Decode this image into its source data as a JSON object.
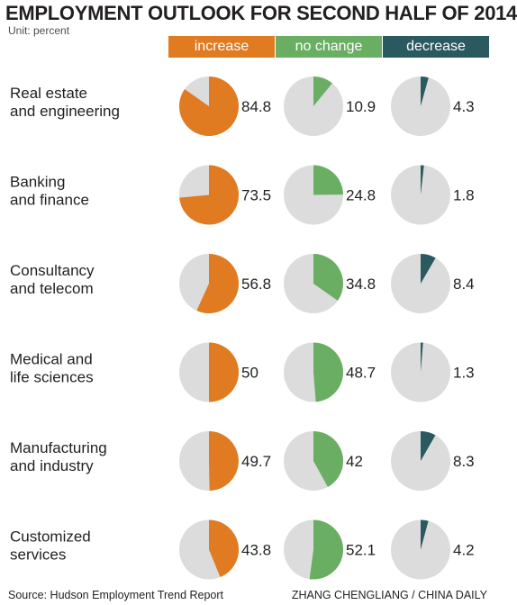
{
  "title": "EMPLOYMENT OUTLOOK FOR SECOND HALF OF 2014",
  "unit": "Unit: percent",
  "footer": {
    "source": "Source: Hudson Employment Trend Report",
    "credit": "ZHANG CHENGLIANG / CHINA DAILY"
  },
  "colors": {
    "increase": "#e07b21",
    "no_change": "#6aae63",
    "decrease": "#2b5960",
    "pie_background": "#dcdcdc"
  },
  "chart_data": {
    "type": "pie",
    "title": "EMPLOYMENT OUTLOOK FOR SECOND HALF OF 2014",
    "unit": "percent",
    "columns": [
      "increase",
      "no change",
      "decrease"
    ],
    "rows": [
      {
        "label": [
          "Real estate",
          "and engineering"
        ],
        "values": [
          84.8,
          10.9,
          4.3
        ],
        "labels": [
          "84.8",
          "10.9",
          "4.3"
        ]
      },
      {
        "label": [
          "Banking",
          "and finance"
        ],
        "values": [
          73.5,
          24.8,
          1.8
        ],
        "labels": [
          "73.5",
          "24.8",
          "1.8"
        ]
      },
      {
        "label": [
          "Consultancy",
          "and telecom"
        ],
        "values": [
          56.8,
          34.8,
          8.4
        ],
        "labels": [
          "56.8",
          "34.8",
          "8.4"
        ]
      },
      {
        "label": [
          "Medical and",
          "life sciences"
        ],
        "values": [
          50,
          48.7,
          1.3
        ],
        "labels": [
          "50",
          "48.7",
          "1.3"
        ]
      },
      {
        "label": [
          "Manufacturing",
          "and industry"
        ],
        "values": [
          49.7,
          42,
          8.3
        ],
        "labels": [
          "49.7",
          "42",
          "8.3"
        ]
      },
      {
        "label": [
          "Customized",
          "services"
        ],
        "values": [
          43.8,
          52.1,
          4.2
        ],
        "labels": [
          "43.8",
          "52.1",
          "4.2"
        ]
      }
    ]
  }
}
